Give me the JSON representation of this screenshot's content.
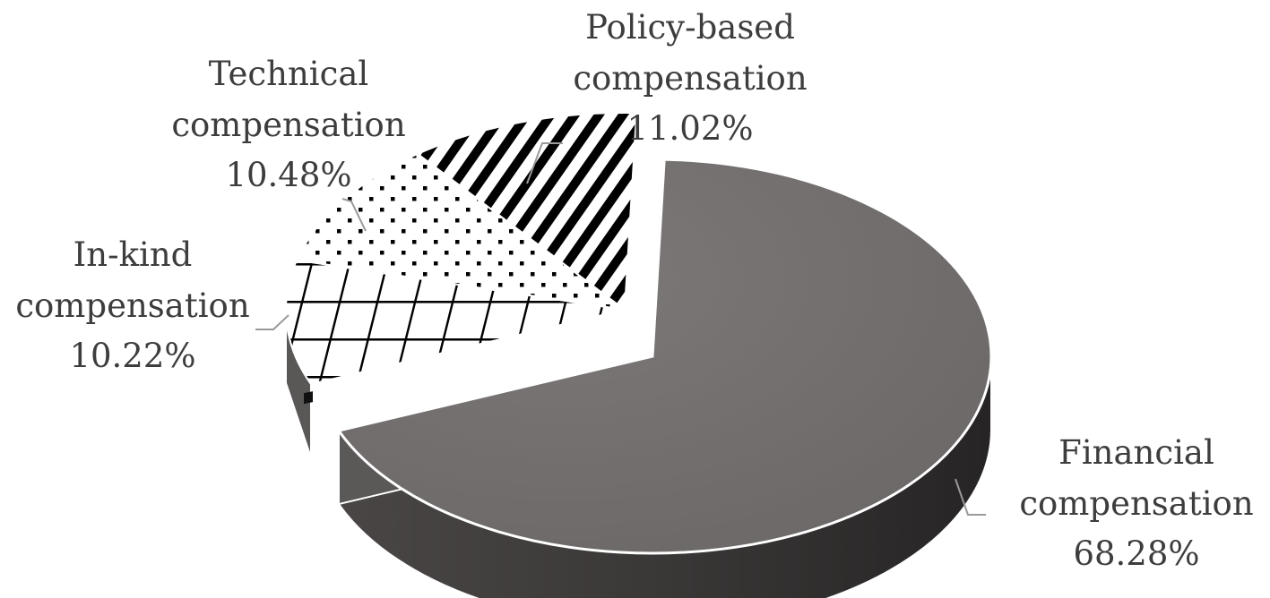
{
  "chart_data": {
    "type": "pie",
    "title": "",
    "three_d": true,
    "slices": [
      {
        "name": "Financial compensation",
        "line1": "Financial",
        "line2": "compensation",
        "value": 68.28,
        "value_label": "68.28%",
        "pattern": "solid",
        "color": "#767272"
      },
      {
        "name": "In-kind compensation",
        "line1": "In-kind",
        "line2": "compensation",
        "value": 10.22,
        "value_label": "10.22%",
        "pattern": "crosshatch",
        "color": "#ffffff"
      },
      {
        "name": "Technical compensation",
        "line1": "Technical",
        "line2": "compensation",
        "value": 10.48,
        "value_label": "10.48%",
        "pattern": "dots",
        "color": "#ffffff"
      },
      {
        "name": "Policy-based compensation",
        "line1": "Policy-based",
        "line2": "compensation",
        "value": 11.02,
        "value_label": "11.02%",
        "pattern": "diagonal-stripes",
        "color": "#ffffff"
      }
    ]
  }
}
